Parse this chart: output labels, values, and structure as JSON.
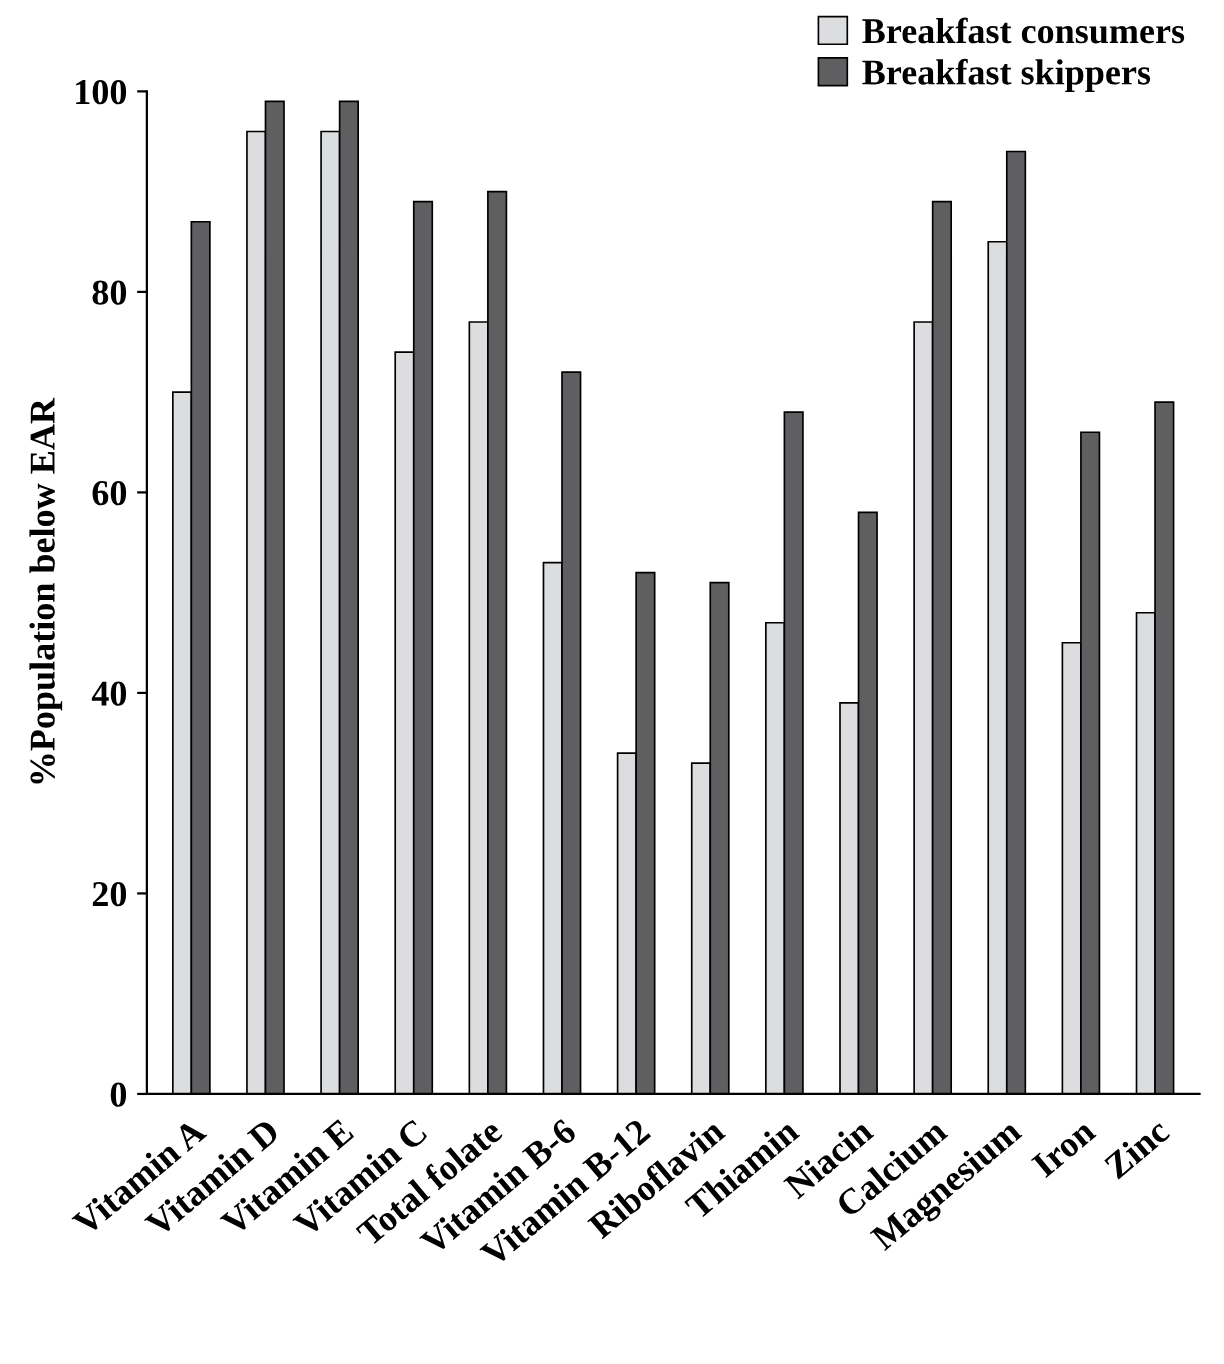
{
  "chart_data": {
    "type": "bar",
    "ylabel": "%Population below EAR",
    "categories": [
      "Vitamin A",
      "Vitamin D",
      "Vitamin E",
      "Vitamin C",
      "Total folate",
      "Vitamin B-6",
      "Vitamin B-12",
      "Riboflavin",
      "Thiamin",
      "Niacin",
      "Calcium",
      "Magnesium",
      "Iron",
      "Zinc"
    ],
    "series": [
      {
        "name": "Breakfast consumers",
        "color": "#dcdddf",
        "values": [
          70,
          96,
          96,
          74,
          77,
          53,
          34,
          33,
          47,
          39,
          77,
          85,
          45,
          48
        ]
      },
      {
        "name": "Breakfast skippers",
        "color": "#5f5f61",
        "values": [
          87,
          99,
          99,
          89,
          90,
          72,
          52,
          51,
          68,
          58,
          89,
          94,
          66,
          69
        ]
      }
    ],
    "ylim": [
      0,
      100
    ],
    "yticks": [
      0,
      20,
      40,
      60,
      80,
      100
    ],
    "grid": false,
    "legend": "top right"
  }
}
